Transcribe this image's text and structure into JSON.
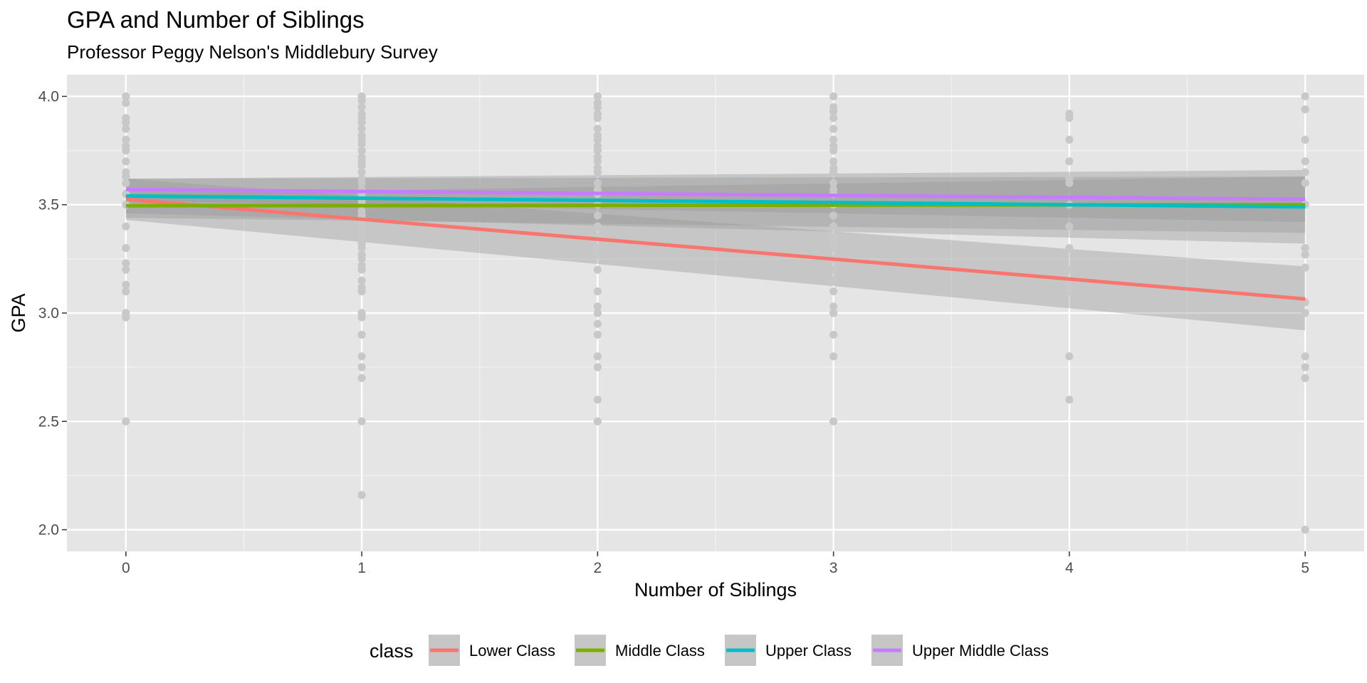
{
  "chart_data": {
    "type": "scatter",
    "title": "GPA and Number of Siblings",
    "subtitle": "Professor Peggy Nelson's Middlebury Survey",
    "xlabel": "Number of Siblings",
    "ylabel": "GPA",
    "xlim": [
      -0.25,
      5.25
    ],
    "ylim": [
      1.9,
      4.1
    ],
    "x_ticks": [
      0,
      1,
      2,
      3,
      4,
      5
    ],
    "x_tick_labels": [
      "0",
      "1",
      "2",
      "3",
      "4",
      "5"
    ],
    "y_ticks": [
      2.0,
      2.5,
      3.0,
      3.5,
      4.0
    ],
    "y_tick_labels": [
      "2.0",
      "2.5",
      "3.0",
      "3.5",
      "4.0"
    ],
    "grid": true,
    "legend": {
      "title": "class",
      "position": "bottom",
      "entries": [
        "Lower Class",
        "Middle Class",
        "Upper Class",
        "Upper Middle Class"
      ]
    },
    "points_color": "#c8c8c8",
    "points": [
      {
        "x": 0,
        "y": [
          4.0,
          3.97,
          3.9,
          3.88,
          3.85,
          3.8,
          3.77,
          3.75,
          3.7,
          3.65,
          3.63,
          3.6,
          3.55,
          3.5,
          3.4,
          3.3,
          3.23,
          3.2,
          3.13,
          3.1,
          3.0,
          2.98,
          2.5
        ]
      },
      {
        "x": 1,
        "y": [
          4.0,
          3.98,
          3.95,
          3.92,
          3.9,
          3.88,
          3.85,
          3.82,
          3.8,
          3.78,
          3.75,
          3.72,
          3.7,
          3.68,
          3.65,
          3.62,
          3.6,
          3.57,
          3.55,
          3.52,
          3.5,
          3.47,
          3.45,
          3.42,
          3.4,
          3.37,
          3.35,
          3.32,
          3.3,
          3.27,
          3.25,
          3.22,
          3.2,
          3.15,
          3.12,
          3.1,
          3.0,
          2.98,
          2.9,
          2.8,
          2.75,
          2.7,
          2.5,
          2.16
        ]
      },
      {
        "x": 2,
        "y": [
          4.0,
          3.97,
          3.95,
          3.92,
          3.9,
          3.85,
          3.82,
          3.8,
          3.77,
          3.75,
          3.72,
          3.7,
          3.67,
          3.65,
          3.6,
          3.57,
          3.55,
          3.5,
          3.45,
          3.4,
          3.35,
          3.3,
          3.27,
          3.2,
          3.1,
          3.03,
          3.0,
          2.95,
          2.9,
          2.8,
          2.75,
          2.6,
          2.5
        ]
      },
      {
        "x": 3,
        "y": [
          4.0,
          3.95,
          3.93,
          3.9,
          3.85,
          3.8,
          3.77,
          3.75,
          3.7,
          3.67,
          3.65,
          3.6,
          3.57,
          3.55,
          3.5,
          3.45,
          3.4,
          3.35,
          3.32,
          3.3,
          3.25,
          3.2,
          3.15,
          3.1,
          3.03,
          3.0,
          2.9,
          2.8,
          2.5
        ]
      },
      {
        "x": 4,
        "y": [
          3.92,
          3.9,
          3.8,
          3.7,
          3.62,
          3.6,
          3.5,
          3.4,
          3.3,
          3.2,
          3.13,
          3.1,
          2.8,
          2.6
        ]
      },
      {
        "x": 5,
        "y": [
          4.0,
          3.94,
          3.8,
          3.7,
          3.65,
          3.6,
          3.5,
          3.3,
          3.27,
          3.21,
          3.05,
          3.0,
          2.8,
          2.75,
          2.7,
          2.0
        ]
      }
    ],
    "series": [
      {
        "name": "Lower Class",
        "color": "#f8766d",
        "x": [
          0,
          5
        ],
        "y": [
          3.525,
          3.065
        ],
        "band_low": [
          3.43,
          2.92
        ],
        "band_high": [
          3.62,
          3.215
        ]
      },
      {
        "name": "Middle Class",
        "color": "#7cae00",
        "x": [
          0,
          5
        ],
        "y": [
          3.495,
          3.5
        ],
        "band_low": [
          3.44,
          3.37
        ],
        "band_high": [
          3.55,
          3.63
        ]
      },
      {
        "name": "Upper Class",
        "color": "#00bfc4",
        "x": [
          0,
          5
        ],
        "y": [
          3.54,
          3.49
        ],
        "band_low": [
          3.46,
          3.32
        ],
        "band_high": [
          3.62,
          3.66
        ]
      },
      {
        "name": "Upper Middle Class",
        "color": "#c77cff",
        "x": [
          0,
          5
        ],
        "y": [
          3.57,
          3.525
        ],
        "band_low": [
          3.52,
          3.42
        ],
        "band_high": [
          3.62,
          3.63
        ]
      }
    ]
  }
}
